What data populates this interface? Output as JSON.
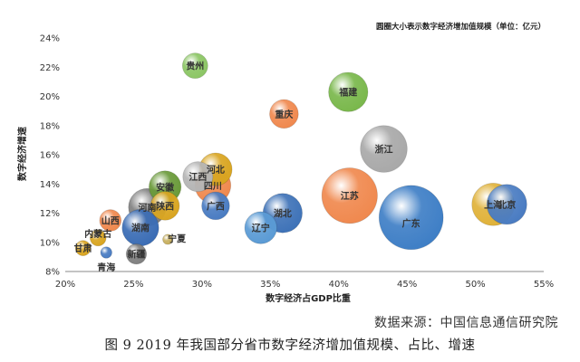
{
  "chart_data": {
    "type": "scatter",
    "subtype": "bubble",
    "note": "圆圈大小表示数字经济增加值规模（单位：亿元）",
    "xlabel": "数字经济占GDP比重",
    "ylabel": "数字经济增速",
    "xlim": [
      20,
      55
    ],
    "ylim": [
      8,
      24
    ],
    "xticks": [
      "20%",
      "25%",
      "30%",
      "35%",
      "40%",
      "45%",
      "50%",
      "55%"
    ],
    "yticks": [
      "8%",
      "10%",
      "12%",
      "14%",
      "16%",
      "18%",
      "20%",
      "22%",
      "24%"
    ],
    "grid": false,
    "legend": "none",
    "points": [
      {
        "label": "贵州",
        "x": 29.5,
        "y": 22.1,
        "size": 0.25,
        "color": "#8cc665"
      },
      {
        "label": "福建",
        "x": 40.7,
        "y": 20.3,
        "size": 0.6,
        "color": "#7ab84c"
      },
      {
        "label": "重庆",
        "x": 36.0,
        "y": 18.8,
        "size": 0.32,
        "color": "#f0894f"
      },
      {
        "label": "浙江",
        "x": 43.3,
        "y": 16.4,
        "size": 0.85,
        "color": "#a9a9a9"
      },
      {
        "label": "河北",
        "x": 31.0,
        "y": 15.0,
        "size": 0.42,
        "color": "#d9a521"
      },
      {
        "label": "江西",
        "x": 29.7,
        "y": 14.5,
        "size": 0.35,
        "color": "#b5b5b5"
      },
      {
        "label": "安徽",
        "x": 27.3,
        "y": 13.8,
        "size": 0.4,
        "color": "#6a9a3a"
      },
      {
        "label": "四川",
        "x": 30.8,
        "y": 13.9,
        "size": 0.5,
        "color": "#f0894f"
      },
      {
        "label": "江苏",
        "x": 40.8,
        "y": 13.2,
        "size": 1.2,
        "color": "#f0894f"
      },
      {
        "label": "陕西",
        "x": 27.3,
        "y": 12.5,
        "size": 0.32,
        "color": "#d9a521"
      },
      {
        "label": "河南",
        "x": 26.0,
        "y": 12.4,
        "size": 0.55,
        "color": "#808080"
      },
      {
        "label": "广西",
        "x": 31.0,
        "y": 12.5,
        "size": 0.3,
        "color": "#4a7cc2"
      },
      {
        "label": "湖北",
        "x": 35.9,
        "y": 12.0,
        "size": 0.6,
        "color": "#3f73b8"
      },
      {
        "label": "上海",
        "x": 51.3,
        "y": 12.6,
        "size": 0.7,
        "color": "#e0b23a"
      },
      {
        "label": "北京",
        "x": 52.3,
        "y": 12.6,
        "size": 0.62,
        "color": "#4a7cc2"
      },
      {
        "label": "广东",
        "x": 45.3,
        "y": 11.7,
        "size": 1.6,
        "color": "#3f7fc6"
      },
      {
        "label": "山西",
        "x": 23.3,
        "y": 11.5,
        "size": 0.18,
        "color": "#f0894f"
      },
      {
        "label": "湖南",
        "x": 25.5,
        "y": 11.0,
        "size": 0.52,
        "color": "#3b6db5"
      },
      {
        "label": "辽宁",
        "x": 34.3,
        "y": 11.0,
        "size": 0.4,
        "color": "#5b9bd5"
      },
      {
        "label": "内蒙古",
        "x": 22.4,
        "y": 10.3,
        "size": 0.1,
        "color": "#d9a521"
      },
      {
        "label": "宁夏",
        "x": 27.5,
        "y": 10.2,
        "size": 0.04,
        "color": "#c8b060"
      },
      {
        "label": "甘肃",
        "x": 21.3,
        "y": 9.6,
        "size": 0.09,
        "color": "#d9a521"
      },
      {
        "label": "新疆",
        "x": 25.2,
        "y": 9.2,
        "size": 0.16,
        "color": "#808080"
      },
      {
        "label": "青海",
        "x": 23.0,
        "y": 9.3,
        "size": 0.05,
        "color": "#4a7cc2"
      }
    ]
  },
  "source_text": "数据来源：中国信息通信研究院",
  "caption_text": "图 9 2019 年我国部分省市数字经济增加值规模、占比、增速"
}
